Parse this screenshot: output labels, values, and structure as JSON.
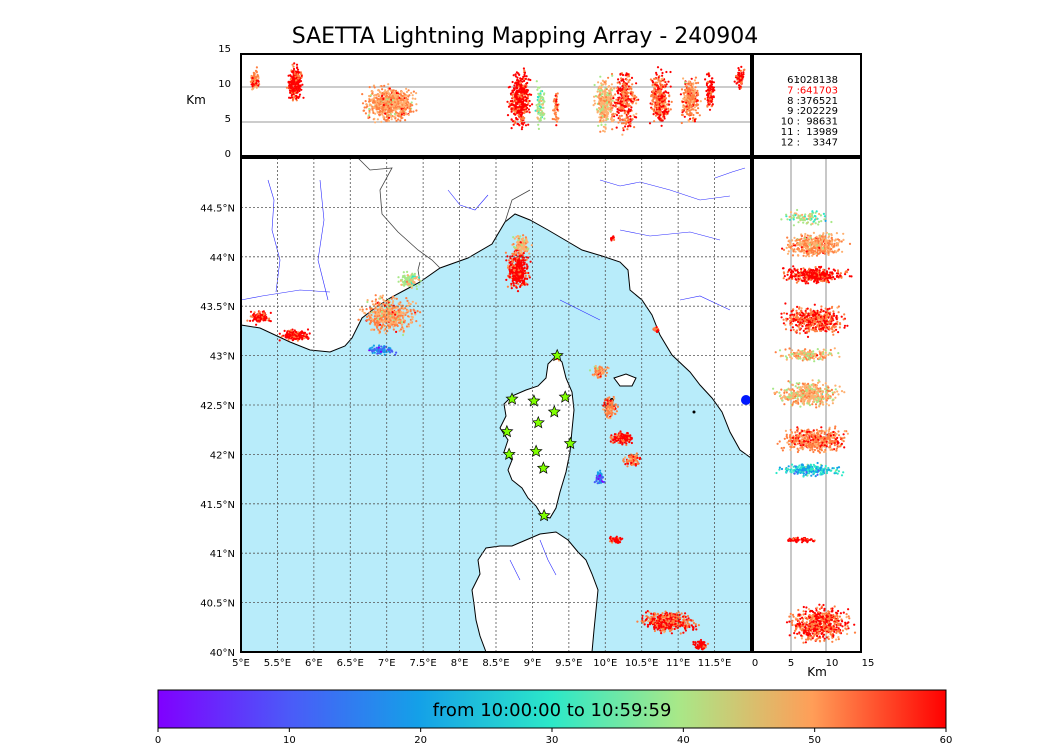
{
  "title": "SAETTA Lightning Mapping Array - 240904",
  "top_panel": {
    "ylabel": "Km",
    "yticks": [
      "15",
      "10",
      "5",
      "0"
    ]
  },
  "right_panel": {
    "xlabel": "Km",
    "xticks": [
      "0",
      "5",
      "10",
      "15"
    ]
  },
  "map": {
    "lon_ticks": [
      "5°E",
      "5.5°E",
      "6°E",
      "6.5°E",
      "7°E",
      "7.5°E",
      "8°E",
      "8.5°E",
      "9°E",
      "9.5°E",
      "10°E",
      "10.5°E",
      "11°E",
      "11.5°E"
    ],
    "lat_ticks": [
      "40°N",
      "40.5°N",
      "41°N",
      "41.5°N",
      "42°N",
      "42.5°N",
      "43°N",
      "43.5°N",
      "44°N",
      "44.5°N"
    ],
    "extent": {
      "lon": [
        5,
        12
      ],
      "lat": [
        40,
        45
      ]
    },
    "sea_color": "#b8ecfa",
    "stations_label": "LMA stations",
    "stations": [
      {
        "lon": 8.72,
        "lat": 42.56
      },
      {
        "lon": 9.02,
        "lat": 42.54
      },
      {
        "lon": 9.45,
        "lat": 42.58
      },
      {
        "lon": 9.3,
        "lat": 42.43
      },
      {
        "lon": 9.08,
        "lat": 42.32
      },
      {
        "lon": 8.65,
        "lat": 42.23
      },
      {
        "lon": 9.52,
        "lat": 42.11
      },
      {
        "lon": 8.68,
        "lat": 42.0
      },
      {
        "lon": 9.05,
        "lat": 42.03
      },
      {
        "lon": 9.15,
        "lat": 41.86
      },
      {
        "lon": 9.16,
        "lat": 41.38
      },
      {
        "lon": 9.34,
        "lat": 43.0
      }
    ]
  },
  "legend": {
    "entries": [
      {
        "key": "6",
        "value": "1028138",
        "color": "#000000"
      },
      {
        "key": "7",
        "value": "641703",
        "color": "#ff0000"
      },
      {
        "key": "8",
        "value": "376521",
        "color": "#000000"
      },
      {
        "key": "9",
        "value": "202229",
        "color": "#000000"
      },
      {
        "key": "10",
        "value": "98631",
        "color": "#000000"
      },
      {
        "key": "11",
        "value": "13989",
        "color": "#000000"
      },
      {
        "key": "12",
        "value": "3347",
        "color": "#000000"
      }
    ]
  },
  "colorbar": {
    "label": "from 10:00:00 to 10:59:59",
    "ticks": [
      "0",
      "10",
      "20",
      "30",
      "40",
      "50",
      "60"
    ],
    "range": [
      0,
      60
    ],
    "colormap": "rainbow"
  }
}
